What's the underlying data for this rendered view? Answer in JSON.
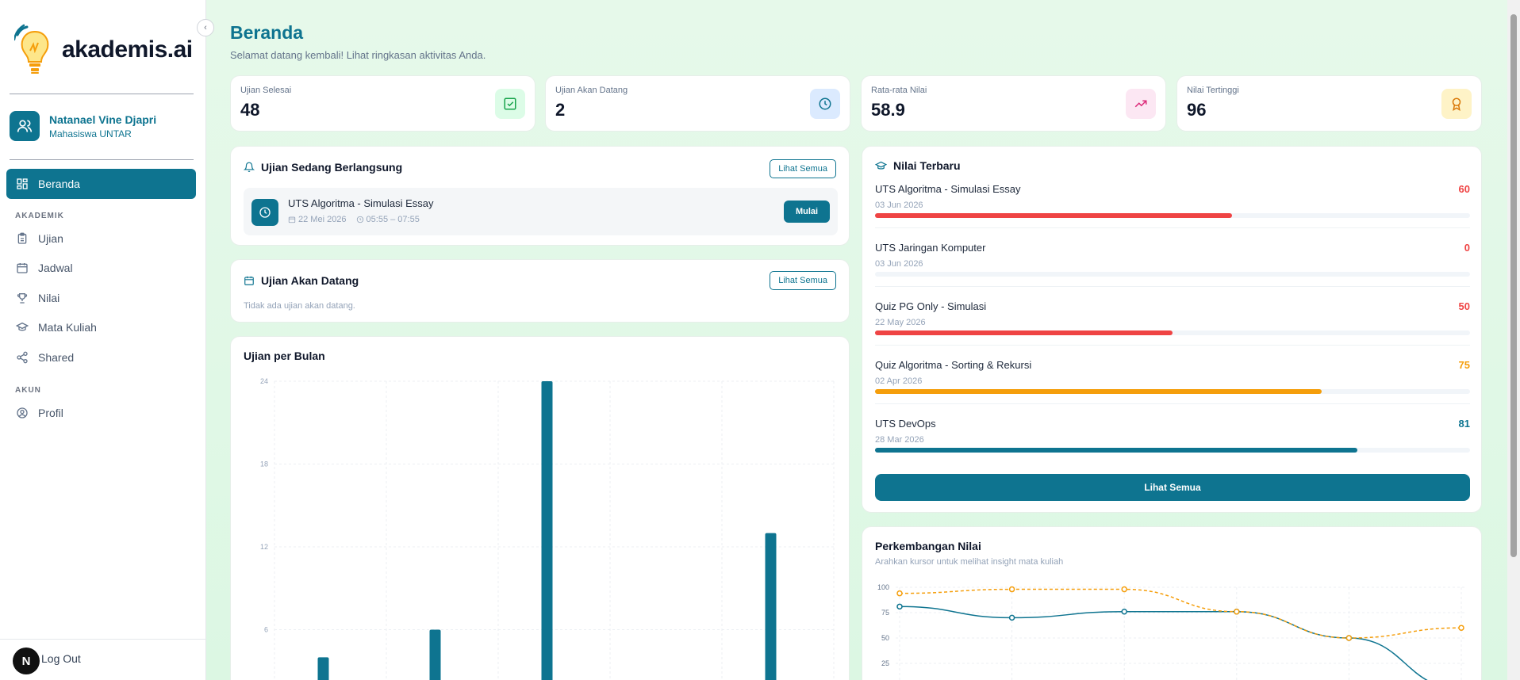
{
  "app": {
    "logo_text": "akademis.ai"
  },
  "sidebar": {
    "user": {
      "name": "Natanael Vine Djapri",
      "role": "Mahasiswa UNTAR"
    },
    "active_item": "Beranda",
    "section_academic": "AKADEMIK",
    "items_academic": [
      "Ujian",
      "Jadwal",
      "Nilai",
      "Mata Kuliah",
      "Shared"
    ],
    "section_account": "AKUN",
    "items_account": [
      "Profil"
    ],
    "logout_badge": "N",
    "logout_label": "Log Out"
  },
  "header": {
    "title": "Beranda",
    "subtitle": "Selamat datang kembali! Lihat ringkasan aktivitas Anda."
  },
  "stats": [
    {
      "label": "Ujian Selesai",
      "value": "48",
      "icon": "check-square-icon",
      "color": "#16a34a",
      "bg": "#dcfce7"
    },
    {
      "label": "Ujian Akan Datang",
      "value": "2",
      "icon": "clock-icon",
      "color": "#0e7490",
      "bg": "#dbeafe"
    },
    {
      "label": "Rata-rata Nilai",
      "value": "58.9",
      "icon": "trending-up-icon",
      "color": "#db2777",
      "bg": "#fce7f3"
    },
    {
      "label": "Nilai Tertinggi",
      "value": "96",
      "icon": "award-icon",
      "color": "#d97706",
      "bg": "#fef3c7"
    }
  ],
  "ongoing": {
    "title": "Ujian Sedang Berlangsung",
    "view_all": "Lihat Semua",
    "exam": {
      "name": "UTS Algoritma - Simulasi Essay",
      "date": "22 Mei 2026",
      "time": "05:55 – 07:55",
      "action": "Mulai"
    }
  },
  "upcoming": {
    "title": "Ujian Akan Datang",
    "view_all": "Lihat Semua",
    "empty": "Tidak ada ujian akan datang."
  },
  "latest_grades": {
    "title": "Nilai Terbaru",
    "items": [
      {
        "name": "UTS Algoritma - Simulasi Essay",
        "date": "03 Jun 2026",
        "score": 60,
        "score_text": "60",
        "color": "#ef4444"
      },
      {
        "name": "UTS Jaringan Komputer",
        "date": "03 Jun 2026",
        "score": 0,
        "score_text": "0",
        "color": "#ef4444"
      },
      {
        "name": "Quiz PG Only - Simulasi",
        "date": "22 May 2026",
        "score": 50,
        "score_text": "50",
        "color": "#ef4444"
      },
      {
        "name": "Quiz Algoritma - Sorting & Rekursi",
        "date": "02 Apr 2026",
        "score": 75,
        "score_text": "75",
        "color": "#f59e0b"
      },
      {
        "name": "UTS DevOps",
        "date": "28 Mar 2026",
        "score": 81,
        "score_text": "81",
        "color": "#0e7490"
      }
    ],
    "view_all": "Lihat Semua"
  },
  "colors": {
    "accent": "#0e7490",
    "accent2": "#14b8a6",
    "orange": "#f59e0b"
  },
  "chart_data": [
    {
      "type": "bar",
      "title": "Ujian per Bulan",
      "yticks": [
        "24",
        "18",
        "12",
        "6"
      ],
      "ylim": [
        0,
        24
      ],
      "series": [
        {
          "values": [
            4,
            6,
            24,
            1,
            13
          ]
        },
        {
          "values": [
            0,
            0,
            0,
            0,
            2
          ]
        }
      ],
      "grid": true
    },
    {
      "type": "line",
      "title": "Perkembangan Nilai",
      "subtitle": "Arahkan kursor untuk melihat insight mata kuliah",
      "yticks": [
        "100",
        "75",
        "50",
        "25"
      ],
      "ylim": [
        0,
        100
      ],
      "series": [
        {
          "values": [
            81,
            70,
            76,
            76,
            50,
            0
          ]
        },
        {
          "values": [
            94,
            98,
            98,
            76,
            50,
            60
          ]
        }
      ],
      "grid": true
    }
  ]
}
